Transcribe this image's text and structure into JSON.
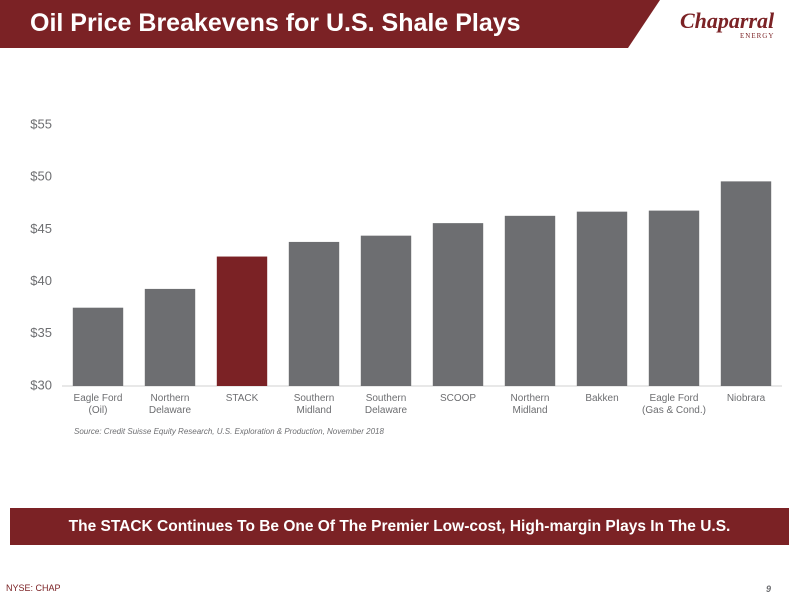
{
  "header": {
    "title": "Oil Price Breakevens for U.S. Shale Plays",
    "logo": "Chaparral",
    "logo_sub": "ENERGY"
  },
  "chart_data": {
    "type": "bar",
    "categories": [
      "Eagle Ford\n(Oil)",
      "Northern\nDelaware",
      "STACK",
      "Southern\nMidland",
      "Southern\nDelaware",
      "SCOOP",
      "Northern\nMidland",
      "Bakken",
      "Eagle Ford\n(Gas & Cond.)",
      "Niobrara"
    ],
    "values": [
      37.5,
      39.3,
      42.4,
      43.8,
      44.4,
      45.6,
      46.3,
      46.7,
      46.8,
      49.6
    ],
    "colors": [
      "#6d6e71",
      "#6d6e71",
      "#7b2225",
      "#6d6e71",
      "#6d6e71",
      "#6d6e71",
      "#6d6e71",
      "#6d6e71",
      "#6d6e71",
      "#6d6e71"
    ],
    "ylim": [
      30,
      55
    ],
    "yticks": [
      {
        "value": 30,
        "label": "$30"
      },
      {
        "value": 35,
        "label": "$35"
      },
      {
        "value": 40,
        "label": "$40"
      },
      {
        "value": 45,
        "label": "$45"
      },
      {
        "value": 50,
        "label": "$50"
      },
      {
        "value": 55,
        "label": "$55"
      }
    ],
    "grid": false,
    "source": "Source: Credit Suisse Equity Research, U.S. Exploration & Production, November 2018"
  },
  "banner": "The STACK Continues To Be One Of The Premier Low-cost, High-margin Plays In The U.S.",
  "footer": {
    "ticker": "NYSE: CHAP",
    "page_number": 9
  }
}
